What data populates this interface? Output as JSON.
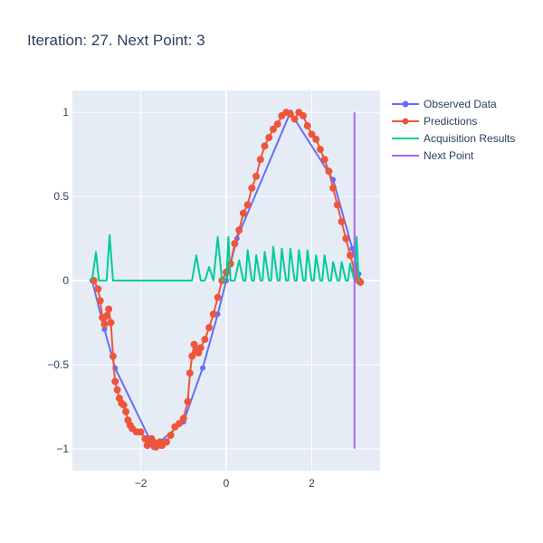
{
  "chart_data": {
    "type": "line",
    "title": "Iteration: 27. Next Point: 3",
    "xlabel": "",
    "ylabel": "",
    "xlim": [
      -3.6,
      3.6
    ],
    "ylim": [
      -1.13,
      1.13
    ],
    "x_ticks": [
      -2,
      0,
      2
    ],
    "x_tick_labels": [
      "−2",
      "0",
      "2"
    ],
    "y_ticks": [
      -1,
      -0.5,
      0,
      0.5,
      1
    ],
    "y_tick_labels": [
      "−1",
      "−0.5",
      "0",
      "0.5",
      "1"
    ],
    "grid": true,
    "legend_position": "top-right",
    "series": [
      {
        "name": "Observed Data",
        "color": "#636efa",
        "mode": "lines+markers",
        "x": [
          -3.14,
          -2.85,
          -2.6,
          -1.7,
          -1.0,
          -0.55,
          -0.2,
          0.0,
          0.25,
          1.5,
          2.5,
          2.95,
          3.1
        ],
        "y": [
          0.0,
          -0.29,
          -0.52,
          -0.99,
          -0.84,
          -0.52,
          -0.2,
          0.0,
          0.25,
          1.0,
          0.6,
          0.19,
          0.04
        ]
      },
      {
        "name": "Predictions",
        "color": "#ef553b",
        "mode": "lines+markers",
        "x": [
          -3.1,
          -3.0,
          -2.95,
          -2.9,
          -2.85,
          -2.8,
          -2.75,
          -2.7,
          -2.65,
          -2.6,
          -2.55,
          -2.5,
          -2.45,
          -2.4,
          -2.35,
          -2.3,
          -2.25,
          -2.2,
          -2.1,
          -2.0,
          -1.9,
          -1.85,
          -1.8,
          -1.75,
          -1.7,
          -1.65,
          -1.6,
          -1.55,
          -1.5,
          -1.4,
          -1.3,
          -1.2,
          -1.1,
          -1.0,
          -0.9,
          -0.85,
          -0.8,
          -0.75,
          -0.7,
          -0.65,
          -0.6,
          -0.5,
          -0.4,
          -0.3,
          -0.2,
          -0.1,
          0.0,
          0.1,
          0.2,
          0.3,
          0.4,
          0.5,
          0.6,
          0.7,
          0.8,
          0.9,
          1.0,
          1.1,
          1.2,
          1.3,
          1.4,
          1.5,
          1.6,
          1.7,
          1.8,
          1.9,
          2.0,
          2.1,
          2.2,
          2.3,
          2.4,
          2.5,
          2.6,
          2.7,
          2.8,
          2.9,
          3.0,
          3.05,
          3.1,
          3.14
        ],
        "y": [
          0.0,
          -0.05,
          -0.12,
          -0.22,
          -0.26,
          -0.21,
          -0.17,
          -0.25,
          -0.45,
          -0.6,
          -0.65,
          -0.7,
          -0.73,
          -0.74,
          -0.78,
          -0.83,
          -0.86,
          -0.88,
          -0.9,
          -0.9,
          -0.94,
          -0.98,
          -0.97,
          -0.94,
          -0.96,
          -0.99,
          -0.98,
          -0.96,
          -0.98,
          -0.96,
          -0.92,
          -0.87,
          -0.85,
          -0.82,
          -0.72,
          -0.55,
          -0.45,
          -0.38,
          -0.42,
          -0.43,
          -0.4,
          -0.35,
          -0.28,
          -0.2,
          -0.1,
          0.0,
          0.05,
          0.1,
          0.22,
          0.3,
          0.4,
          0.45,
          0.55,
          0.62,
          0.72,
          0.8,
          0.85,
          0.9,
          0.93,
          0.98,
          1.0,
          0.99,
          0.96,
          1.0,
          0.98,
          0.92,
          0.87,
          0.84,
          0.78,
          0.72,
          0.65,
          0.55,
          0.45,
          0.35,
          0.25,
          0.15,
          0.06,
          0.02,
          0.0,
          -0.01
        ]
      },
      {
        "name": "Acquisition Results",
        "color": "#00cc96",
        "mode": "lines",
        "x": [
          -3.14,
          -3.05,
          -2.98,
          -2.9,
          -2.8,
          -2.73,
          -2.65,
          -2.55,
          -2.0,
          -1.9,
          -1.8,
          -1.0,
          -0.8,
          -0.7,
          -0.6,
          -0.5,
          -0.4,
          -0.3,
          -0.2,
          -0.1,
          0.0,
          0.05,
          0.1,
          0.2,
          0.3,
          0.4,
          0.45,
          0.5,
          0.6,
          0.65,
          0.7,
          0.8,
          0.85,
          0.9,
          1.0,
          1.05,
          1.1,
          1.2,
          1.25,
          1.3,
          1.4,
          1.45,
          1.5,
          1.6,
          1.65,
          1.7,
          1.8,
          1.85,
          1.9,
          2.0,
          2.05,
          2.1,
          2.2,
          2.25,
          2.3,
          2.4,
          2.45,
          2.5,
          2.6,
          2.65,
          2.7,
          2.8,
          2.85,
          2.9,
          3.0,
          3.05,
          3.1,
          3.14
        ],
        "y": [
          0.0,
          0.17,
          0.0,
          0.0,
          0.0,
          0.27,
          0.0,
          0.0,
          0.0,
          0.0,
          0.0,
          0.0,
          0.0,
          0.15,
          0.0,
          0.0,
          0.08,
          0.0,
          0.26,
          0.0,
          0.0,
          0.26,
          0.0,
          0.0,
          0.12,
          0.0,
          0.0,
          0.18,
          0.0,
          0.0,
          0.15,
          0.0,
          0.0,
          0.17,
          0.0,
          0.0,
          0.2,
          0.0,
          0.0,
          0.19,
          0.0,
          0.0,
          0.19,
          0.0,
          0.0,
          0.18,
          0.0,
          0.0,
          0.18,
          0.0,
          0.0,
          0.15,
          0.0,
          0.0,
          0.15,
          0.0,
          0.0,
          0.11,
          0.0,
          0.0,
          0.11,
          0.0,
          0.0,
          0.1,
          0.0,
          0.26,
          0.0,
          0.0
        ]
      },
      {
        "name": "Next Point",
        "color": "#ab63fa",
        "mode": "lines",
        "x": [
          3.0,
          3.0
        ],
        "y": [
          -1.0,
          1.0
        ]
      }
    ]
  }
}
